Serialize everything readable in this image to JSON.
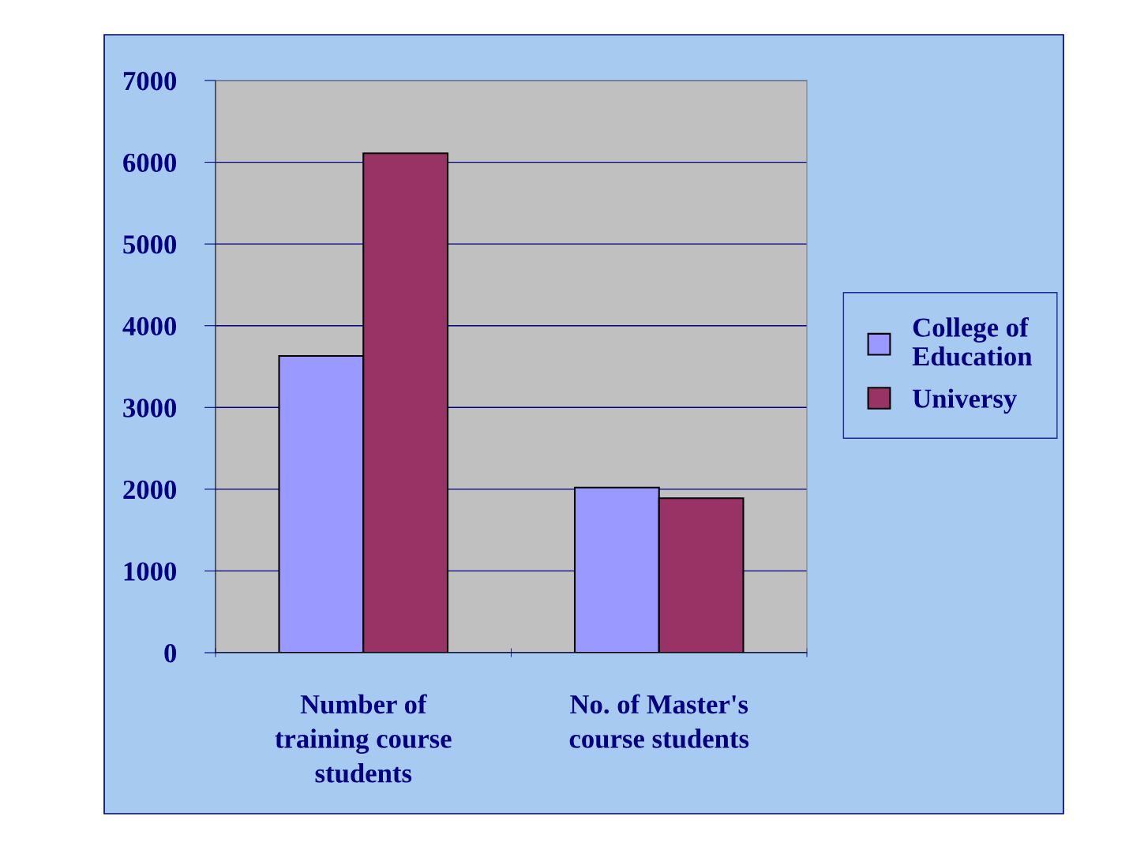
{
  "chart_data": {
    "type": "bar",
    "categories": [
      "Number of\ntraining course\nstudents",
      "No. of Master's\ncourse students"
    ],
    "series": [
      {
        "name": "College of\nEducation",
        "color": "#9999ff",
        "values": [
          3630,
          2020
        ]
      },
      {
        "name": "Universy",
        "color": "#993366",
        "values": [
          6110,
          1890
        ]
      }
    ],
    "ylim": [
      0,
      7000
    ],
    "yticks": [
      0,
      1000,
      2000,
      3000,
      4000,
      5000,
      6000,
      7000
    ],
    "grid": "y",
    "legend": "right"
  }
}
